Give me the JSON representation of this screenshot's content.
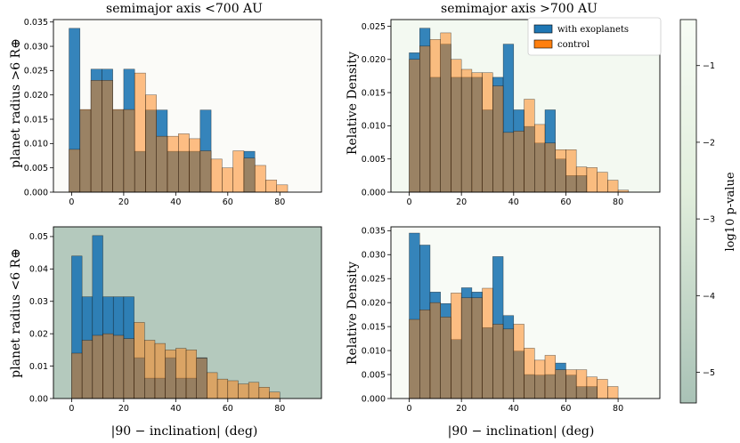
{
  "colors": {
    "exo": "#1f77b4",
    "control": "#ff7f0e",
    "axis": "#000000",
    "cbar_top": "#f7fcf5",
    "cbar_bottom": "#a9c2b6"
  },
  "titles": {
    "left": "semimajor axis <700 AU",
    "right": "semimajor axis >700 AU"
  },
  "ylabels": {
    "top_left": "planet radius >6 R⊕",
    "bottom_left": "planet radius <6 R⊕",
    "top_right": "Relative Density",
    "bottom_right": "Relative Density"
  },
  "xlabel": "|90 − inclination| (deg)",
  "legend": {
    "exo": "with exoplanets",
    "control": "control"
  },
  "colorbar": {
    "label": "log10 p-value",
    "range": [
      -5.4,
      -0.4
    ],
    "ticks": [
      "−1",
      "−2",
      "−3",
      "−4",
      "−5"
    ]
  },
  "chart_data": [
    {
      "id": "top_left",
      "type": "bar",
      "title": "semimajor axis <700 AU",
      "ylabel": "planet radius >6 R⊕",
      "xlabel": "",
      "background": "#fbfbf8",
      "bin_width": 4.2,
      "bin_start": -1,
      "xlim": [
        -7,
        96
      ],
      "ylim": [
        0,
        0.0355
      ],
      "xticks": [
        "0",
        "20",
        "40",
        "60",
        "80"
      ],
      "yticks": [
        "0.000",
        "0.005",
        "0.010",
        "0.015",
        "0.020",
        "0.025",
        "0.030",
        "0.035"
      ],
      "series": [
        {
          "name": "with exoplanets",
          "values": [
            0.0337,
            0.0169,
            0.0253,
            0.0253,
            0.0169,
            0.0253,
            0.0084,
            0.0169,
            0.0169,
            0.0084,
            0.0084,
            0.0084,
            0.0169,
            0.0,
            0.0,
            0.0,
            0.0084,
            0.0,
            0.0,
            0.0,
            0.0,
            0.0
          ]
        },
        {
          "name": "control",
          "values": [
            0.0088,
            0.017,
            0.023,
            0.023,
            0.017,
            0.017,
            0.0245,
            0.02,
            0.0115,
            0.0115,
            0.012,
            0.011,
            0.0085,
            0.0068,
            0.005,
            0.0085,
            0.007,
            0.0055,
            0.0025,
            0.0015,
            0.0,
            0.0
          ]
        }
      ]
    },
    {
      "id": "top_right",
      "type": "bar",
      "title": "semimajor axis >700 AU",
      "ylabel": "Relative Density",
      "xlabel": "",
      "background": "#f3f9f1",
      "bin_width": 4.0,
      "bin_start": 0,
      "xlim": [
        -7,
        96
      ],
      "ylim": [
        0,
        0.026
      ],
      "xticks": [
        "0",
        "20",
        "40",
        "60",
        "80"
      ],
      "yticks": [
        "0.000",
        "0.005",
        "0.010",
        "0.015",
        "0.020",
        "0.025"
      ],
      "series": [
        {
          "name": "with exoplanets",
          "values": [
            0.021,
            0.0247,
            0.0173,
            0.0223,
            0.0173,
            0.0173,
            0.0173,
            0.0124,
            0.0173,
            0.0223,
            0.0124,
            0.0099,
            0.0074,
            0.0124,
            0.005,
            0.0025,
            0.0025,
            0.0,
            0.0,
            0.0,
            0.0,
            0.0
          ]
        },
        {
          "name": "control",
          "values": [
            0.02,
            0.022,
            0.023,
            0.024,
            0.02,
            0.0185,
            0.018,
            0.018,
            0.016,
            0.009,
            0.0092,
            0.014,
            0.0102,
            0.0074,
            0.0064,
            0.0064,
            0.0038,
            0.0037,
            0.003,
            0.0018,
            0.0003,
            0.0
          ]
        }
      ]
    },
    {
      "id": "bottom_left",
      "type": "bar",
      "title": "",
      "ylabel": "planet radius <6 R⊕",
      "xlabel": "|90 − inclination| (deg)",
      "background": "#b4c9bd",
      "bin_width": 4.0,
      "bin_start": 0,
      "xlim": [
        -7,
        96
      ],
      "ylim": [
        0,
        0.053
      ],
      "xticks": [
        "0",
        "20",
        "40",
        "60",
        "80"
      ],
      "yticks": [
        "0.00",
        "0.01",
        "0.02",
        "0.03",
        "0.04",
        "0.05"
      ],
      "series": [
        {
          "name": "with exoplanets",
          "values": [
            0.044,
            0.0314,
            0.0503,
            0.0314,
            0.0314,
            0.0314,
            0.0126,
            0.0063,
            0.0063,
            0.0126,
            0.0063,
            0.0063,
            0.0126,
            0.0,
            0.0,
            0.0,
            0.0,
            0.0,
            0.0,
            0.0,
            0.0,
            0.0
          ]
        },
        {
          "name": "control",
          "values": [
            0.014,
            0.018,
            0.0195,
            0.02,
            0.0195,
            0.0185,
            0.0235,
            0.018,
            0.017,
            0.015,
            0.0155,
            0.015,
            0.0125,
            0.008,
            0.006,
            0.0055,
            0.0045,
            0.005,
            0.0035,
            0.002,
            0.0,
            0.0
          ]
        }
      ]
    },
    {
      "id": "bottom_right",
      "type": "bar",
      "title": "",
      "ylabel": "Relative Density",
      "xlabel": "|90 − inclination| (deg)",
      "background": "#f8fbf6",
      "bin_width": 4.0,
      "bin_start": 0,
      "xlim": [
        -7,
        96
      ],
      "ylim": [
        0,
        0.0358
      ],
      "xticks": [
        "0",
        "20",
        "40",
        "60",
        "80"
      ],
      "yticks": [
        "0.000",
        "0.005",
        "0.010",
        "0.015",
        "0.020",
        "0.025",
        "0.030",
        "0.035"
      ],
      "series": [
        {
          "name": "with exoplanets",
          "values": [
            0.0345,
            0.032,
            0.0222,
            0.0198,
            0.0123,
            0.0231,
            0.0222,
            0.0148,
            0.0296,
            0.0173,
            0.0099,
            0.005,
            0.0049,
            0.005,
            0.0074,
            0.0049,
            0.0025,
            0.0025,
            0.0,
            0.0,
            0.0,
            0.0
          ]
        },
        {
          "name": "control",
          "values": [
            0.0165,
            0.0185,
            0.02,
            0.017,
            0.022,
            0.021,
            0.021,
            0.023,
            0.0155,
            0.0145,
            0.0155,
            0.0105,
            0.008,
            0.009,
            0.006,
            0.006,
            0.006,
            0.0045,
            0.004,
            0.0025,
            0.0,
            0.0
          ]
        }
      ]
    }
  ]
}
